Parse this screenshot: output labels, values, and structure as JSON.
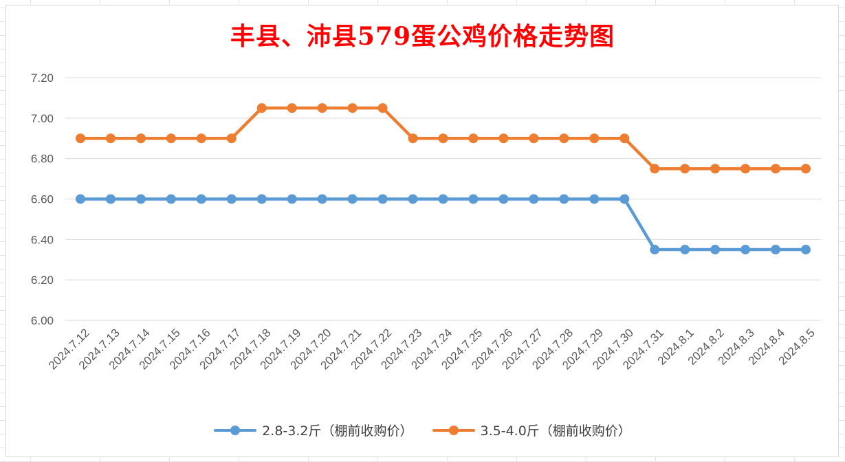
{
  "chart_data": {
    "type": "line",
    "title": "丰县、沛县579蛋公鸡价格走势图",
    "xlabel": "",
    "ylabel": "",
    "ylim": [
      6.0,
      7.2
    ],
    "y_ticks": [
      "6.00",
      "6.20",
      "6.40",
      "6.60",
      "6.80",
      "7.00",
      "7.20"
    ],
    "grid": true,
    "legend_position": "bottom",
    "categories": [
      "2024.7.12",
      "2024.7.13",
      "2024.7.14",
      "2024.7.15",
      "2024.7.16",
      "2024.7.17",
      "2024.7.18",
      "2024.7.19",
      "2024.7.20",
      "2024.7.21",
      "2024.7.22",
      "2024.7.23",
      "2024.7.24",
      "2024.7.25",
      "2024.7.26",
      "2024.7.27",
      "2024.7.28",
      "2024.7.29",
      "2024.7.30",
      "2024.7.31",
      "2024.8.1",
      "2024.8.2",
      "2024.8.3",
      "2024.8.4",
      "2024.8.5"
    ],
    "series": [
      {
        "name": "2.8-3.2斤（棚前收购价）",
        "color": "#5b9bd5",
        "values": [
          6.6,
          6.6,
          6.6,
          6.6,
          6.6,
          6.6,
          6.6,
          6.6,
          6.6,
          6.6,
          6.6,
          6.6,
          6.6,
          6.6,
          6.6,
          6.6,
          6.6,
          6.6,
          6.6,
          6.35,
          6.35,
          6.35,
          6.35,
          6.35,
          6.35
        ]
      },
      {
        "name": "3.5-4.0斤（棚前收购价）",
        "color": "#ed7d31",
        "values": [
          6.9,
          6.9,
          6.9,
          6.9,
          6.9,
          6.9,
          7.05,
          7.05,
          7.05,
          7.05,
          7.05,
          6.9,
          6.9,
          6.9,
          6.9,
          6.9,
          6.9,
          6.9,
          6.9,
          6.75,
          6.75,
          6.75,
          6.75,
          6.75,
          6.75
        ]
      }
    ]
  }
}
